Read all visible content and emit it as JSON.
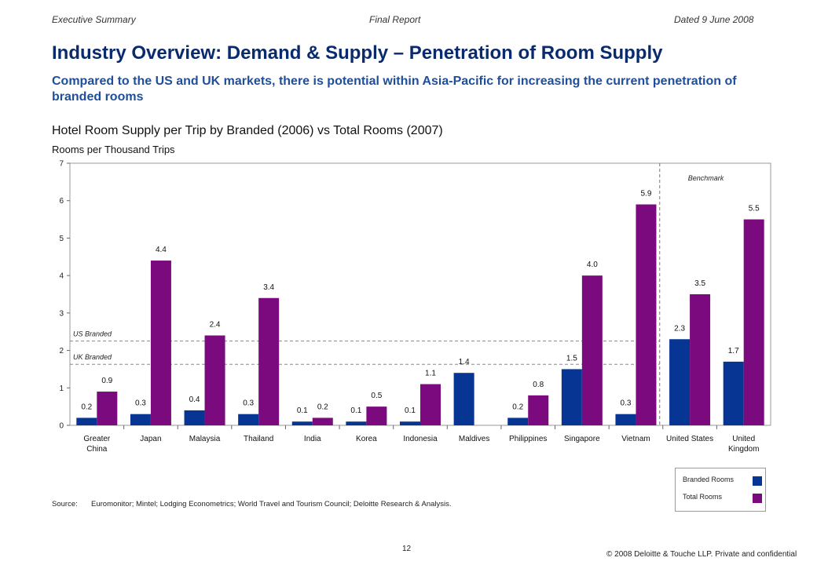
{
  "header": {
    "left": "Executive Summary",
    "center": "Final Report",
    "right": "Dated 9 June 2008"
  },
  "title": "Industry Overview: Demand & Supply – Penetration of Room Supply",
  "subtitle": "Compared to the US and UK markets, there is potential within Asia-Pacific for increasing the current penetration of branded rooms",
  "colors": {
    "branded": "#063594",
    "total": "#7a0a7e",
    "title": "#0a2a6e",
    "subtitle": "#1f4e9a"
  },
  "chart_data": {
    "type": "bar",
    "title": "Hotel Room Supply per Trip by Branded (2006) vs Total Rooms (2007)",
    "ylabel": "Rooms per Thousand Trips",
    "ylim": [
      0,
      7
    ],
    "yticks": [
      0,
      1,
      2,
      3,
      4,
      5,
      6,
      7
    ],
    "grid": false,
    "legend_position": "bottom-right",
    "categories": [
      [
        "Greater",
        "China"
      ],
      [
        "Japan"
      ],
      [
        "Malaysia"
      ],
      [
        "Thailand"
      ],
      [
        "India"
      ],
      [
        "Korea"
      ],
      [
        "Indonesia"
      ],
      [
        "Maldives"
      ],
      [
        "Philippines"
      ],
      [
        "Singapore"
      ],
      [
        "Vietnam"
      ],
      [
        "United States"
      ],
      [
        "United",
        "Kingdom"
      ]
    ],
    "series": [
      {
        "name": "Branded Rooms",
        "values": [
          0.2,
          0.3,
          0.4,
          0.3,
          0.1,
          0.1,
          0.1,
          1.4,
          0.2,
          1.5,
          0.3,
          2.3,
          1.7
        ],
        "labels": [
          "0.2",
          "0.3",
          "0.4",
          "0.3",
          "0.1",
          "0.1",
          "0.1",
          "1.4",
          "0.2",
          "1.5",
          "0.3",
          "2.3",
          "1.7"
        ]
      },
      {
        "name": "Total Rooms",
        "values": [
          0.9,
          4.4,
          2.4,
          3.4,
          0.2,
          0.5,
          1.1,
          null,
          0.8,
          4.0,
          5.9,
          3.5,
          5.5
        ],
        "labels": [
          "0.9",
          "4.4",
          "2.4",
          "3.4",
          "0.2",
          "0.5",
          "1.1",
          "",
          "0.8",
          "4.0",
          "5.9",
          "3.5",
          "5.5"
        ]
      }
    ],
    "reference_lines": [
      {
        "label": "US Branded",
        "value": 2.25
      },
      {
        "label": "UK Branded",
        "value": 1.63
      }
    ],
    "benchmark": {
      "label": "Benchmark",
      "starts_at_category": 11
    }
  },
  "source": {
    "label": "Source:",
    "text": "Euromonitor; Mintel; Lodging Econometrics; World Travel and Tourism Council; Deloitte Research & Analysis."
  },
  "page_number": "12",
  "copyright": "© 2008 Deloitte & Touche LLP. Private and confidential"
}
